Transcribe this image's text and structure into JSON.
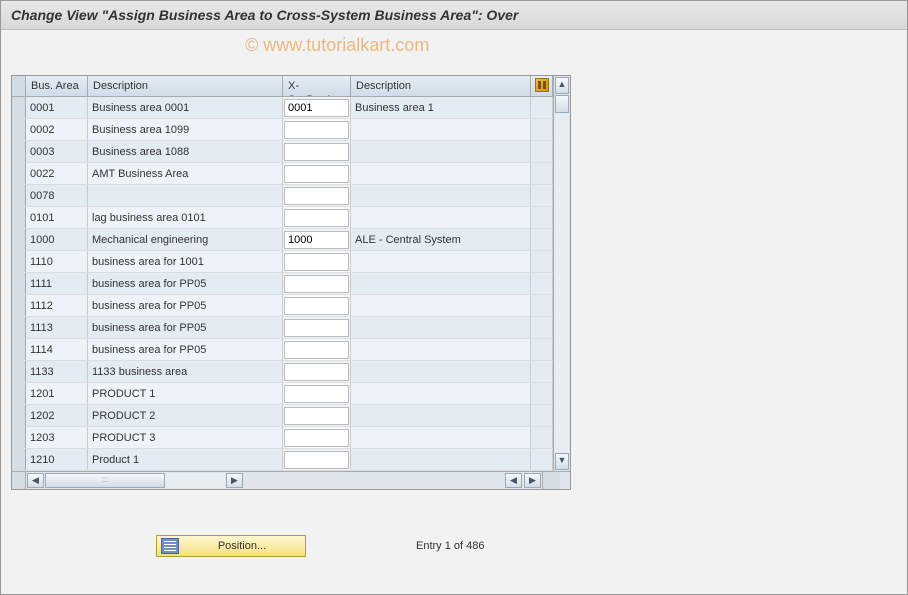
{
  "header": {
    "title": "Change View \"Assign Business Area to Cross-System Business Area\": Over"
  },
  "watermark": "© www.tutorialkart.com",
  "table": {
    "columns": {
      "bus_area": "Bus. Area",
      "description": "Description",
      "xsysbusar": "X-SysBusAr",
      "description2": "Description"
    },
    "rows": [
      {
        "ba": "0001",
        "desc": "Business area 0001",
        "xsys": "0001",
        "desc2": "Business area 1"
      },
      {
        "ba": "0002",
        "desc": "Business area 1099",
        "xsys": "",
        "desc2": ""
      },
      {
        "ba": "0003",
        "desc": "Business area 1088",
        "xsys": "",
        "desc2": ""
      },
      {
        "ba": "0022",
        "desc": "AMT Business Area",
        "xsys": "",
        "desc2": ""
      },
      {
        "ba": "0078",
        "desc": "",
        "xsys": "",
        "desc2": ""
      },
      {
        "ba": "0101",
        "desc": "lag business area 0101",
        "xsys": "",
        "desc2": ""
      },
      {
        "ba": "1000",
        "desc": "Mechanical engineering",
        "xsys": "1000",
        "desc2": "ALE - Central System"
      },
      {
        "ba": "1110",
        "desc": "business area for 1001",
        "xsys": "",
        "desc2": ""
      },
      {
        "ba": "1111",
        "desc": "business area for PP05",
        "xsys": "",
        "desc2": ""
      },
      {
        "ba": "1112",
        "desc": "business area for PP05",
        "xsys": "",
        "desc2": ""
      },
      {
        "ba": "1113",
        "desc": "business area for PP05",
        "xsys": "",
        "desc2": ""
      },
      {
        "ba": "1114",
        "desc": "business area for PP05",
        "xsys": "",
        "desc2": ""
      },
      {
        "ba": "1133",
        "desc": "1133 business area",
        "xsys": "",
        "desc2": ""
      },
      {
        "ba": "1201",
        "desc": "PRODUCT 1",
        "xsys": "",
        "desc2": ""
      },
      {
        "ba": "1202",
        "desc": "PRODUCT 2",
        "xsys": "",
        "desc2": ""
      },
      {
        "ba": "1203",
        "desc": "PRODUCT 3",
        "xsys": "",
        "desc2": ""
      },
      {
        "ba": "1210",
        "desc": "Product 1",
        "xsys": "",
        "desc2": ""
      }
    ]
  },
  "footer": {
    "position_button": "Position...",
    "entry_text": "Entry 1 of 486"
  },
  "colors": {
    "header_bg_top": "#e8e8e8",
    "header_bg_bottom": "#d8d8d8",
    "row_odd": "#eef3f8",
    "row_even": "#f7fafc",
    "th_bg_top": "#e5edf5",
    "th_bg_bottom": "#d0dce8",
    "button_bg_top": "#fff8d0",
    "button_bg_bottom": "#f5e080",
    "watermark_color": "#e8a050"
  }
}
